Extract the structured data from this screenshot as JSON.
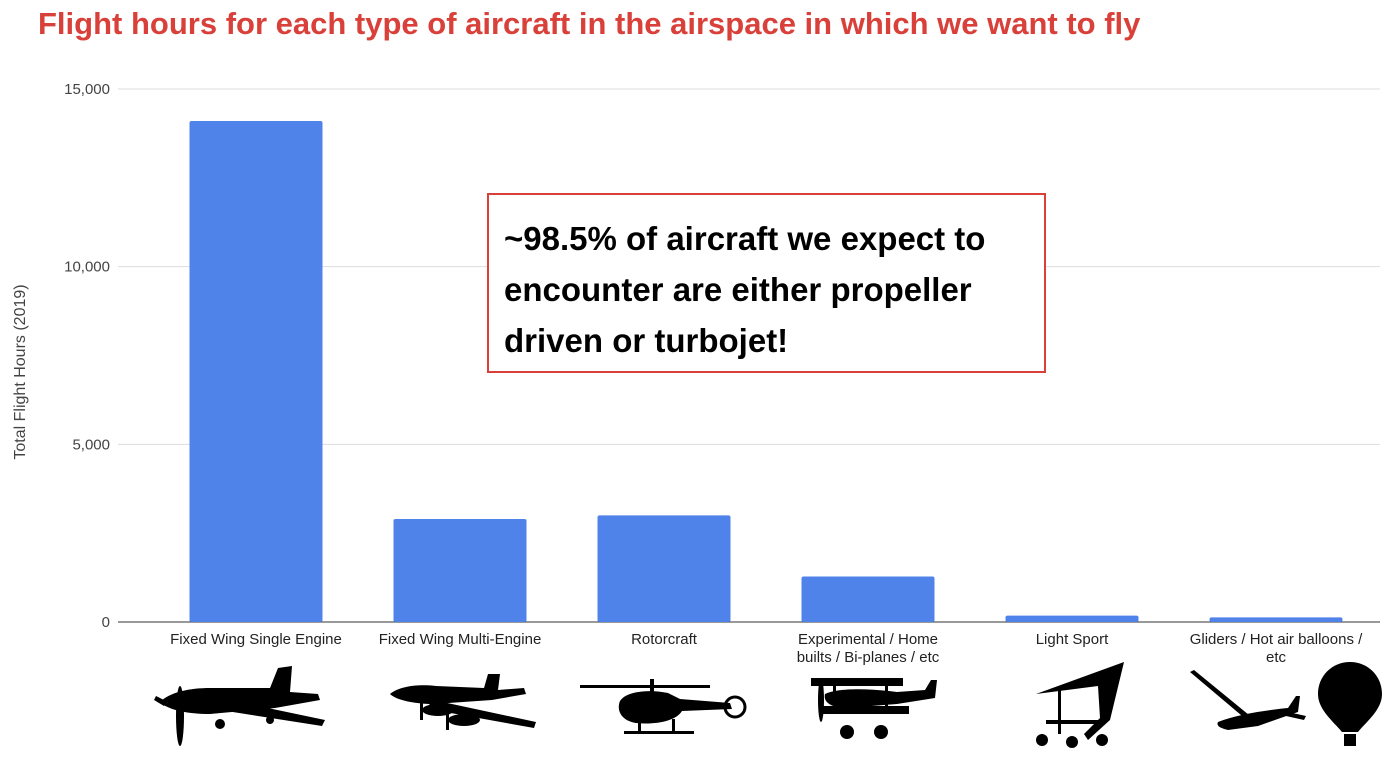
{
  "title": "Flight hours for each type of aircraft in the airspace in which we want to fly",
  "callout": "~98.5% of aircraft we expect to encounter are either propeller driven or turbojet!",
  "colors": {
    "title": "#d9403a",
    "bar": "#5083ea",
    "callout_border": "#d9403a",
    "grid": "#dddddd"
  },
  "chart_data": {
    "type": "bar",
    "title": "",
    "xlabel": "",
    "ylabel": "Total Flight Hours (2019)",
    "ylim": [
      0,
      15000
    ],
    "yticks": [
      0,
      5000,
      10000,
      15000
    ],
    "ytick_labels": [
      "0",
      "5,000",
      "10,000",
      "15,000"
    ],
    "grid": true,
    "categories": [
      [
        "Fixed Wing Single Engine"
      ],
      [
        "Fixed Wing Multi-Engine"
      ],
      [
        "Rotorcraft"
      ],
      [
        "Experimental / Home",
        "builts / Bi-planes / etc"
      ],
      [
        "Light Sport"
      ],
      [
        "Gliders / Hot air balloons /",
        "etc"
      ]
    ],
    "values": [
      14100,
      2900,
      3000,
      1280,
      180,
      130
    ]
  },
  "icons": [
    "single-engine-plane-icon",
    "twin-engine-plane-icon",
    "helicopter-icon",
    "biplane-icon",
    "microlight-trike-icon",
    "glider-icon",
    "hot-air-balloon-icon"
  ]
}
